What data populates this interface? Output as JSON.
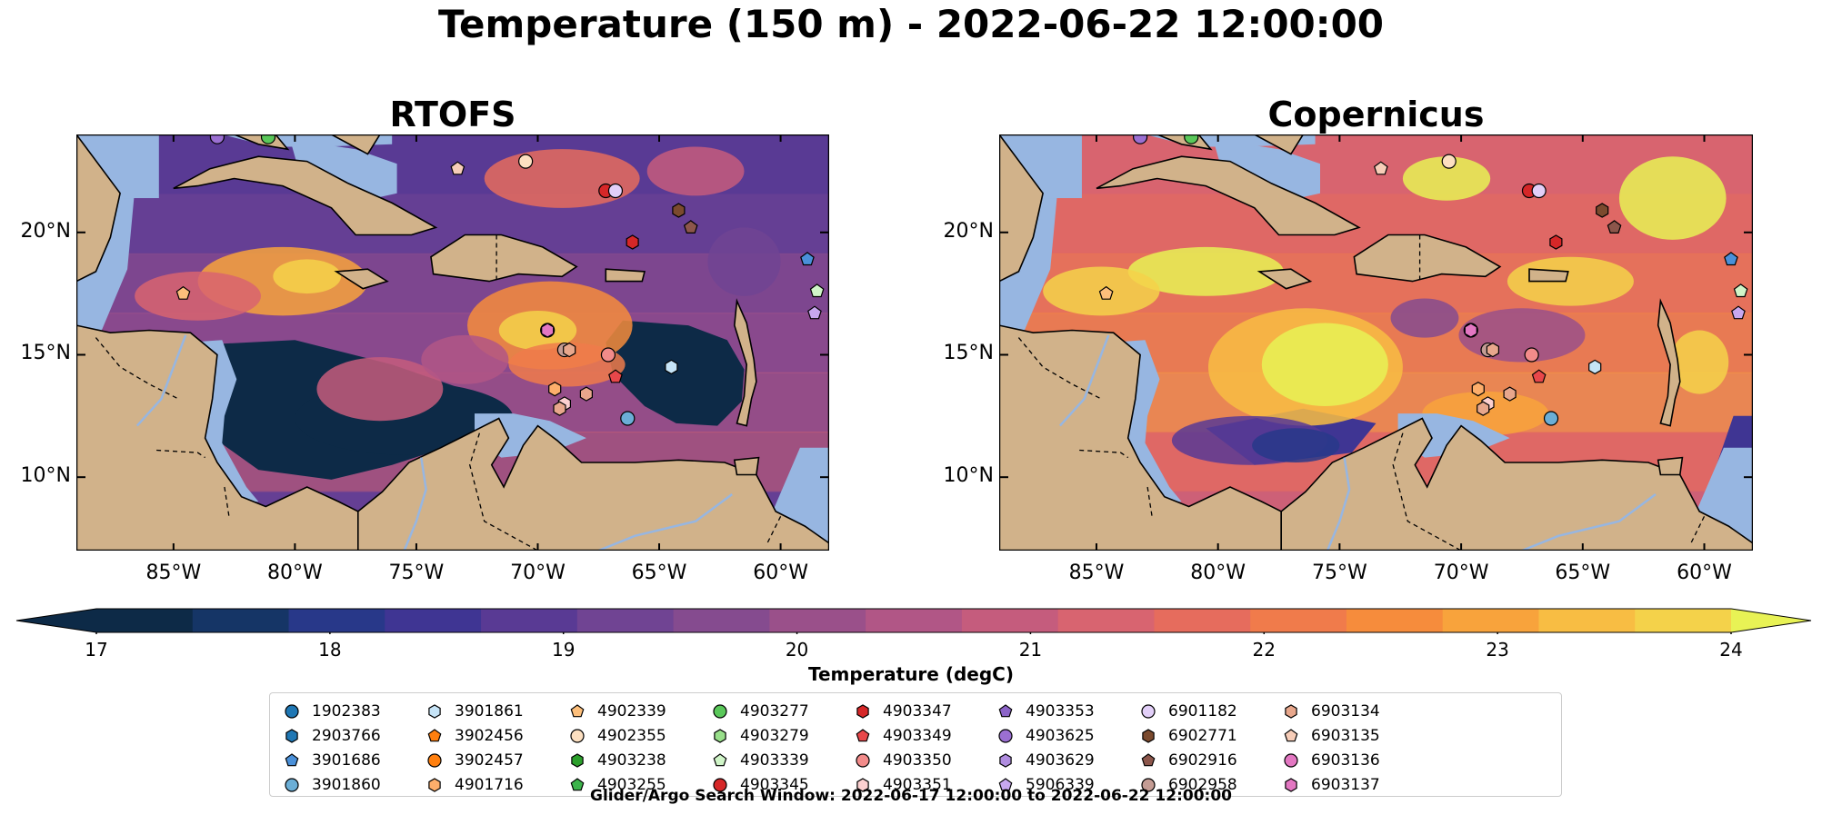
{
  "figure": {
    "suptitle": "Temperature (150 m) - 2022-06-22 12:00:00",
    "footer": "Glider/Argo Search Window: 2022-06-17 12:00:00 to 2022-06-22 12:00:00",
    "lon_range": [
      -89,
      -58
    ],
    "lat_range": [
      7,
      24
    ],
    "lon_ticks": [
      "85°W",
      "80°W",
      "75°W",
      "70°W",
      "65°W",
      "60°W"
    ],
    "lat_ticks": [
      "20°N",
      "15°N",
      "10°N"
    ]
  },
  "panels": [
    {
      "title": "RTOFS"
    },
    {
      "title": "Copernicus"
    }
  ],
  "colorbar": {
    "label": "Temperature (degC)",
    "min": 17,
    "max": 24,
    "ticks": [
      "17",
      "18",
      "19",
      "20",
      "21",
      "22",
      "23",
      "24"
    ],
    "extend": "both",
    "colors": [
      "#0d2a47",
      "#153566",
      "#283889",
      "#3f3593",
      "#593a94",
      "#704493",
      "#854b8f",
      "#9a508a",
      "#b15686",
      "#c55c7d",
      "#d86470",
      "#e66c5d",
      "#f07b4b",
      "#f68c3c",
      "#f8a33c",
      "#f8bd43",
      "#f4d24a",
      "#e8f255"
    ]
  },
  "colors": {
    "ocean": "#97b6e1",
    "land": "#d1b28a",
    "deep_cold": "#0d2a47",
    "border": "#000000"
  },
  "legend": [
    {
      "id": "1902383",
      "color": "#1f77b4",
      "shape": "circle"
    },
    {
      "id": "2903766",
      "color": "#1f77b4",
      "shape": "hexagon"
    },
    {
      "id": "3901686",
      "color": "#4a90d9",
      "shape": "pentagon"
    },
    {
      "id": "3901860",
      "color": "#6baed6",
      "shape": "circle"
    },
    {
      "id": "3901861",
      "color": "#c6e4f7",
      "shape": "hexagon"
    },
    {
      "id": "3902456",
      "color": "#ff7f0e",
      "shape": "pentagon"
    },
    {
      "id": "3902457",
      "color": "#ff7f0e",
      "shape": "circle"
    },
    {
      "id": "4901716",
      "color": "#fdae6b",
      "shape": "hexagon"
    },
    {
      "id": "4902339",
      "color": "#fdbf7b",
      "shape": "pentagon"
    },
    {
      "id": "4902355",
      "color": "#fde0c1",
      "shape": "circle"
    },
    {
      "id": "4903238",
      "color": "#2ca02c",
      "shape": "hexagon"
    },
    {
      "id": "4903255",
      "color": "#3cb44b",
      "shape": "pentagon"
    },
    {
      "id": "4903277",
      "color": "#5ac85a",
      "shape": "circle"
    },
    {
      "id": "4903279",
      "color": "#98df8a",
      "shape": "hexagon"
    },
    {
      "id": "4903339",
      "color": "#d0f5c8",
      "shape": "pentagon"
    },
    {
      "id": "4903345",
      "color": "#d62728",
      "shape": "circle"
    },
    {
      "id": "4903347",
      "color": "#d62728",
      "shape": "hexagon"
    },
    {
      "id": "4903349",
      "color": "#e8474a",
      "shape": "pentagon"
    },
    {
      "id": "4903350",
      "color": "#f28b8a",
      "shape": "circle"
    },
    {
      "id": "4903351",
      "color": "#fcd0d0",
      "shape": "hexagon"
    },
    {
      "id": "4903353",
      "color": "#8c64c8",
      "shape": "pentagon"
    },
    {
      "id": "4903625",
      "color": "#9b6fd2",
      "shape": "circle"
    },
    {
      "id": "4903629",
      "color": "#b08de0",
      "shape": "hexagon"
    },
    {
      "id": "5906339",
      "color": "#c8a8ef",
      "shape": "pentagon"
    },
    {
      "id": "6901182",
      "color": "#e2cff8",
      "shape": "circle"
    },
    {
      "id": "6902771",
      "color": "#7b4a2e",
      "shape": "hexagon"
    },
    {
      "id": "6902916",
      "color": "#8c564b",
      "shape": "pentagon"
    },
    {
      "id": "6902958",
      "color": "#c49c94",
      "shape": "circle"
    },
    {
      "id": "6903134",
      "color": "#e8a78c",
      "shape": "hexagon"
    },
    {
      "id": "6903135",
      "color": "#f7cdb8",
      "shape": "pentagon"
    },
    {
      "id": "6903136",
      "color": "#e377c2",
      "shape": "circle"
    },
    {
      "id": "6903137",
      "color": "#e377c2",
      "shape": "hexagon"
    }
  ],
  "floats": [
    {
      "id": "4903625",
      "lon": -83.2,
      "lat": 23.9
    },
    {
      "id": "4903277",
      "lon": -81.1,
      "lat": 23.9
    },
    {
      "id": "6903135",
      "lon": -73.3,
      "lat": 22.6
    },
    {
      "id": "4902355",
      "lon": -70.5,
      "lat": 22.9
    },
    {
      "id": "4903345",
      "lon": -67.2,
      "lat": 21.7
    },
    {
      "id": "6901182",
      "lon": -66.8,
      "lat": 21.7
    },
    {
      "id": "6902771",
      "lon": -64.2,
      "lat": 20.9
    },
    {
      "id": "6902916",
      "lon": -63.7,
      "lat": 20.2
    },
    {
      "id": "4903347",
      "lon": -66.1,
      "lat": 19.6
    },
    {
      "id": "3901686",
      "lon": -58.9,
      "lat": 18.9
    },
    {
      "id": "4903339",
      "lon": -58.5,
      "lat": 17.6
    },
    {
      "id": "4902339",
      "lon": -84.6,
      "lat": 17.5
    },
    {
      "id": "5906339",
      "lon": -58.6,
      "lat": 16.7
    },
    {
      "id": "6903136",
      "lon": -69.6,
      "lat": 16.0
    },
    {
      "id": "6903137",
      "lon": -69.6,
      "lat": 16.0
    },
    {
      "id": "6902958",
      "lon": -68.9,
      "lat": 15.2
    },
    {
      "id": "6903134",
      "lon": -68.7,
      "lat": 15.2
    },
    {
      "id": "4903350",
      "lon": -67.1,
      "lat": 15.0
    },
    {
      "id": "3901861",
      "lon": -64.5,
      "lat": 14.5
    },
    {
      "id": "4903349",
      "lon": -66.8,
      "lat": 14.1
    },
    {
      "id": "4901716",
      "lon": -69.3,
      "lat": 13.6
    },
    {
      "id": "6903134",
      "lon": -68.0,
      "lat": 13.4
    },
    {
      "id": "4903351",
      "lon": -68.9,
      "lat": 13.0
    },
    {
      "id": "6903134",
      "lon": -69.1,
      "lat": 12.8
    },
    {
      "id": "3901860",
      "lon": -66.3,
      "lat": 12.4
    }
  ]
}
